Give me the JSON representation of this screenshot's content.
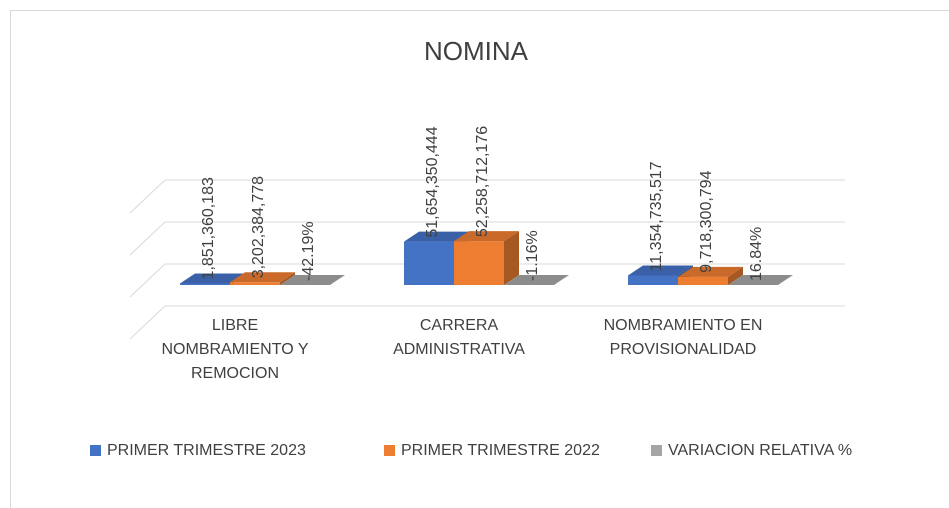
{
  "chart_data": {
    "type": "bar3d",
    "title": "NOMINA",
    "categories": [
      "LIBRE NOMBRAMIENTO Y REMOCION",
      "CARRERA ADMINISTRATIVA",
      "NOMBRAMIENTO EN PROVISIONALIDAD"
    ],
    "series": [
      {
        "name": "PRIMER TRIMESTRE 2023",
        "color": "#4472c4",
        "values": [
          1851360183,
          51654350444,
          11354735517
        ],
        "value_labels": [
          "1,851,360,183",
          "51,654,350,444",
          "11,354,735,517"
        ]
      },
      {
        "name": "PRIMER TRIMESTRE 2022",
        "color": "#ed7d31",
        "values": [
          3202384778,
          52258712176,
          9718300794
        ],
        "value_labels": [
          "3,202,384,778",
          "52,258,712,176",
          "9,718,300,794"
        ]
      },
      {
        "name": "VARIACION RELATIVA %",
        "color": "#a5a5a5",
        "values": [
          -42.19,
          -1.16,
          16.84
        ],
        "value_labels": [
          "-42.19%",
          "-1.16%",
          "16.84%"
        ]
      }
    ],
    "ylim": [
      -50000000000,
      100000000000
    ],
    "yticks": [
      -50000000000,
      0,
      50000000000,
      100000000000
    ],
    "grid": true
  }
}
